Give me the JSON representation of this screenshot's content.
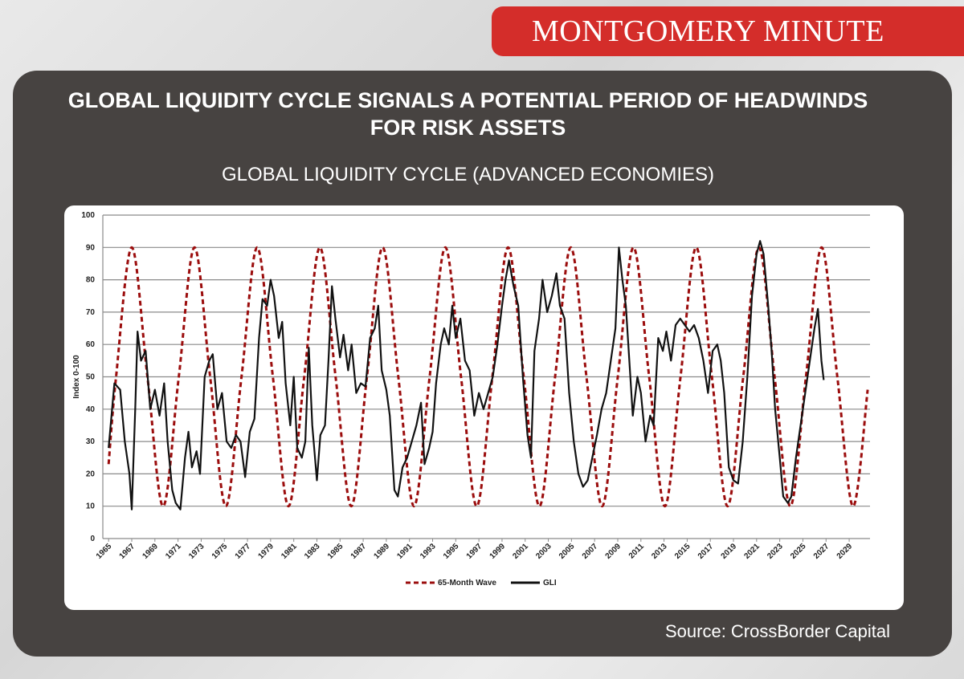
{
  "banner": "MONTGOMERY MINUTE",
  "headline": "GLOBAL LIQUIDITY CYCLE SIGNALS A POTENTIAL PERIOD OF HEADWINDS FOR RISK ASSETS",
  "source": "Source: CrossBorder Capital",
  "chart_data": {
    "type": "line",
    "title": "GLOBAL LIQUIDITY CYCLE (ADVANCED ECONOMIES)",
    "y_label": "Index 0-100",
    "xlim": [
      1964.5,
      2030.8
    ],
    "xticks": [
      1965,
      1967,
      1969,
      1971,
      1973,
      1975,
      1977,
      1979,
      1981,
      1983,
      1985,
      1987,
      1989,
      1991,
      1993,
      1995,
      1997,
      1999,
      2001,
      2003,
      2005,
      2007,
      2009,
      2011,
      2013,
      2015,
      2017,
      2019,
      2021,
      2023,
      2025,
      2027,
      2029
    ],
    "ylim": [
      0,
      100
    ],
    "yticks": [
      0,
      10,
      20,
      30,
      40,
      50,
      60,
      70,
      80,
      90,
      100
    ],
    "grid": true,
    "legend": "bottom",
    "series": [
      {
        "name": "65-Month Wave",
        "color": "#9b0d0d",
        "dashed": true,
        "x": [
          1965.0,
          1965.645,
          1967.0,
          1968.355,
          1969.71,
          1971.065,
          1972.42,
          1973.775,
          1975.13,
          1976.485,
          1977.84,
          1979.195,
          1980.55,
          1981.905,
          1983.26,
          1984.615,
          1985.97,
          1987.325,
          1988.68,
          1990.035,
          1991.39,
          1992.745,
          1994.1,
          1995.455,
          1996.81,
          1998.165,
          1999.52,
          2000.875,
          2002.23,
          2003.585,
          2004.94,
          2006.295,
          2007.65,
          2009.005,
          2010.36,
          2011.715,
          2013.07,
          2014.425,
          2015.78,
          2017.135,
          2018.49,
          2019.845,
          2021.2,
          2022.555,
          2023.91,
          2025.265,
          2026.62,
          2027.975,
          2029.33,
          2030.6
        ],
        "values": [
          23,
          50,
          90,
          50,
          10,
          50,
          90,
          50,
          10,
          50,
          90,
          50,
          10,
          50,
          90,
          50,
          10,
          50,
          90,
          50,
          10,
          50,
          90,
          50,
          10,
          50,
          90,
          50,
          10,
          50,
          90,
          50,
          10,
          50,
          90,
          50,
          10,
          50,
          90,
          50,
          10,
          50,
          90,
          50,
          10,
          50,
          90,
          50,
          10,
          46
        ]
      },
      {
        "name": "GLI",
        "color": "#111111",
        "dashed": false,
        "x": [
          1965.0,
          1965.5,
          1966.0,
          1966.4,
          1966.8,
          1967.0,
          1967.3,
          1967.5,
          1967.8,
          1968.2,
          1968.6,
          1969.0,
          1969.4,
          1969.8,
          1970.1,
          1970.5,
          1970.8,
          1971.2,
          1971.6,
          1971.9,
          1972.2,
          1972.6,
          1972.9,
          1973.3,
          1973.7,
          1974.0,
          1974.4,
          1974.8,
          1975.2,
          1975.6,
          1976.0,
          1976.4,
          1976.8,
          1977.2,
          1977.6,
          1978.0,
          1978.3,
          1978.7,
          1979.0,
          1979.3,
          1979.7,
          1980.0,
          1980.3,
          1980.7,
          1981.0,
          1981.3,
          1981.7,
          1982.0,
          1982.3,
          1982.6,
          1983.0,
          1983.3,
          1983.7,
          1984.0,
          1984.3,
          1984.6,
          1985.0,
          1985.3,
          1985.7,
          1986.0,
          1986.4,
          1986.8,
          1987.2,
          1987.6,
          1988.0,
          1988.3,
          1988.6,
          1989.0,
          1989.3,
          1989.7,
          1990.0,
          1990.4,
          1990.8,
          1991.2,
          1991.6,
          1992.0,
          1992.3,
          1992.7,
          1993.0,
          1993.3,
          1993.7,
          1994.0,
          1994.4,
          1994.7,
          1995.0,
          1995.4,
          1995.8,
          1996.2,
          1996.6,
          1997.0,
          1997.4,
          1997.8,
          1998.2,
          1998.6,
          1999.0,
          1999.3,
          1999.6,
          2000.0,
          2000.4,
          2000.8,
          2001.2,
          2001.5,
          2001.8,
          2002.2,
          2002.5,
          2002.9,
          2003.3,
          2003.7,
          2004.0,
          2004.4,
          2004.8,
          2005.2,
          2005.6,
          2006.0,
          2006.4,
          2006.8,
          2007.2,
          2007.6,
          2008.0,
          2008.4,
          2008.8,
          2009.1,
          2009.4,
          2009.7,
          2010.0,
          2010.3,
          2010.7,
          2011.0,
          2011.4,
          2011.8,
          2012.1,
          2012.5,
          2012.9,
          2013.2,
          2013.6,
          2014.0,
          2014.4,
          2014.8,
          2015.2,
          2015.6,
          2016.0,
          2016.4,
          2016.8,
          2017.2,
          2017.6,
          2017.9,
          2018.2,
          2018.6,
          2019.0,
          2019.4,
          2019.8,
          2020.2,
          2020.6,
          2021.0,
          2021.3,
          2021.6,
          2022.0,
          2022.3,
          2022.6,
          2023.0,
          2023.3,
          2023.7,
          2024.0,
          2024.4,
          2024.8,
          2025.2,
          2025.6,
          2026.0,
          2026.3,
          2026.6,
          2026.8
        ],
        "values": [
          28,
          48,
          46,
          30,
          20,
          9,
          40,
          64,
          55,
          58,
          40,
          46,
          38,
          48,
          30,
          15,
          11,
          9,
          25,
          33,
          22,
          27,
          20,
          50,
          55,
          57,
          40,
          45,
          30,
          28,
          32,
          30,
          19,
          33,
          37,
          62,
          74,
          72,
          80,
          75,
          62,
          67,
          48,
          35,
          50,
          28,
          25,
          30,
          59,
          35,
          18,
          32,
          35,
          55,
          78,
          68,
          56,
          63,
          52,
          60,
          45,
          48,
          47,
          62,
          65,
          72,
          52,
          46,
          38,
          15,
          13,
          22,
          25,
          30,
          35,
          42,
          23,
          28,
          33,
          48,
          60,
          65,
          60,
          72,
          62,
          68,
          55,
          52,
          38,
          45,
          40,
          45,
          50,
          60,
          72,
          80,
          86,
          78,
          72,
          50,
          32,
          25,
          58,
          68,
          80,
          70,
          75,
          82,
          72,
          68,
          45,
          30,
          20,
          16,
          18,
          25,
          32,
          40,
          45,
          55,
          65,
          90,
          80,
          72,
          55,
          38,
          50,
          45,
          30,
          38,
          35,
          62,
          58,
          64,
          55,
          66,
          68,
          66,
          64,
          66,
          62,
          55,
          45,
          58,
          60,
          55,
          45,
          22,
          18,
          17,
          30,
          50,
          75,
          88,
          92,
          88,
          72,
          58,
          40,
          25,
          13,
          11,
          13,
          25,
          35,
          45,
          55,
          65,
          71,
          55,
          49
        ]
      }
    ]
  }
}
